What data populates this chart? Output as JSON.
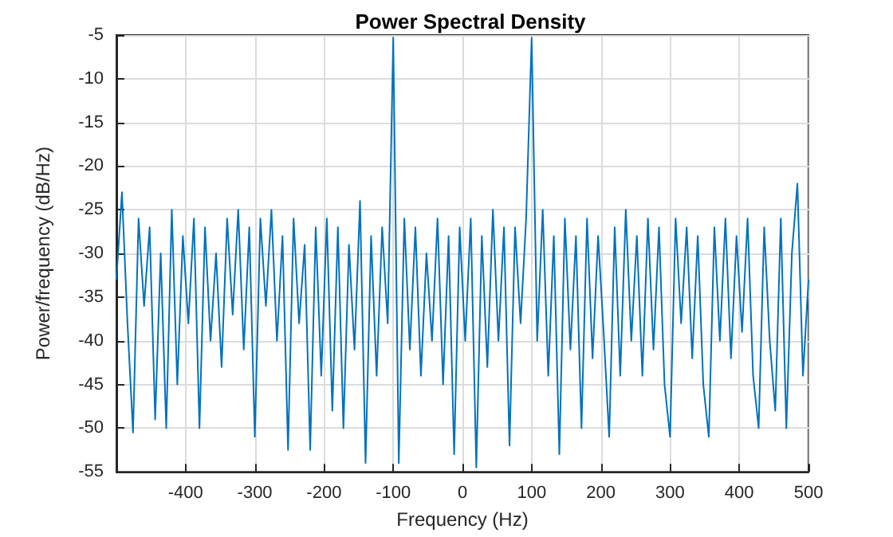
{
  "chart_data": {
    "type": "line",
    "title": "Power Spectral Density",
    "xlabel": "Frequency (Hz)",
    "ylabel": "Power/frequency (dB/Hz)",
    "xlim": [
      -500,
      500
    ],
    "xticks": [
      -400,
      -300,
      -200,
      -100,
      0,
      100,
      200,
      300,
      400,
      500
    ],
    "ylim": [
      -55,
      -5
    ],
    "yticks": [
      -55,
      -50,
      -45,
      -40,
      -35,
      -30,
      -25,
      -20,
      -15,
      -10,
      -5
    ],
    "grid": true,
    "marker": "none",
    "line_style": "solid",
    "x": [
      -500,
      -492,
      -484,
      -476,
      -468,
      -460,
      -452,
      -444,
      -436,
      -428,
      -420,
      -412,
      -404,
      -396,
      -388,
      -380,
      -372,
      -364,
      -356,
      -348,
      -340,
      -332,
      -324,
      -316,
      -308,
      -300,
      -292,
      -284,
      -276,
      -268,
      -260,
      -252,
      -244,
      -236,
      -228,
      -220,
      -212,
      -204,
      -196,
      -188,
      -180,
      -172,
      -164,
      -156,
      -148,
      -140,
      -132,
      -124,
      -116,
      -108,
      -100,
      -92,
      -84,
      -76,
      -68,
      -60,
      -52,
      -44,
      -36,
      -28,
      -20,
      -12,
      -4,
      4,
      12,
      20,
      28,
      36,
      44,
      52,
      60,
      68,
      76,
      84,
      92,
      100,
      108,
      116,
      124,
      132,
      140,
      148,
      156,
      164,
      172,
      180,
      188,
      196,
      204,
      212,
      220,
      228,
      236,
      244,
      252,
      260,
      268,
      276,
      284,
      292,
      300,
      308,
      316,
      324,
      332,
      340,
      348,
      356,
      364,
      372,
      380,
      388,
      396,
      404,
      412,
      420,
      428,
      436,
      444,
      452,
      460,
      468,
      476,
      484,
      492,
      500
    ],
    "series": [
      {
        "color": "#0072bd",
        "values": [
          -33,
          -23,
          -38,
          -50.5,
          -26,
          -36,
          -27,
          -49,
          -30,
          -50,
          -25,
          -45,
          -28,
          -38,
          -26,
          -50,
          -27,
          -40,
          -30,
          -43,
          -26,
          -37,
          -25,
          -41,
          -27,
          -51,
          -26,
          -36,
          -25,
          -40,
          -28,
          -52.5,
          -26,
          -38,
          -29,
          -52.5,
          -27,
          -44,
          -26,
          -48,
          -27,
          -50,
          -29,
          -41,
          -24,
          -54,
          -28,
          -44,
          -27,
          -38,
          -5.3,
          -54,
          -26,
          -41,
          -27,
          -44,
          -30,
          -40,
          -26,
          -45,
          -28,
          -53,
          -27,
          -40,
          -26,
          -54.5,
          -28,
          -43,
          -25,
          -40,
          -27,
          -52,
          -27,
          -38,
          -26,
          -5.3,
          -40,
          -25,
          -44,
          -28,
          -53,
          -26,
          -41,
          -28,
          -50,
          -26,
          -42,
          -28,
          -39,
          -51,
          -27,
          -44,
          -25,
          -40,
          -28,
          -44,
          -26,
          -41,
          -27,
          -45,
          -51,
          -26,
          -38,
          -27,
          -42,
          -28,
          -45,
          -51,
          -27,
          -40,
          -26,
          -42,
          -28,
          -39,
          -26,
          -44,
          -50,
          -27,
          -40,
          -48,
          -26,
          -50,
          -30,
          -22,
          -44,
          -33
        ]
      }
    ]
  }
}
